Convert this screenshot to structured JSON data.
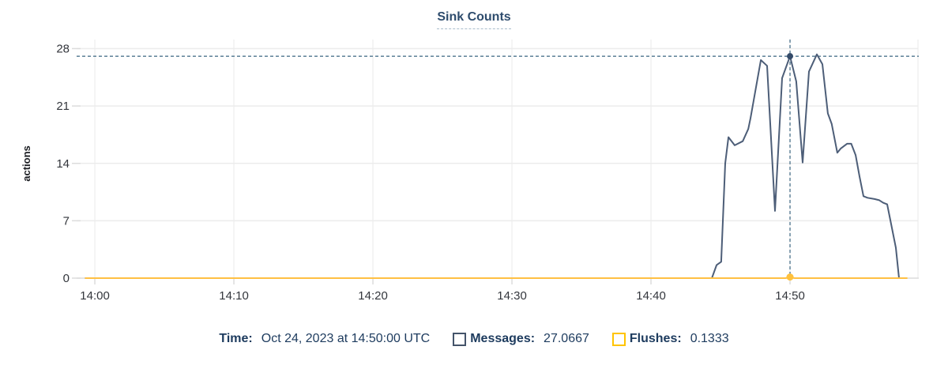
{
  "title": "Sink Counts",
  "tooltip": {
    "time_label": "Time:",
    "time_value": "Oct 24, 2023 at 14:50:00 UTC",
    "items": [
      {
        "label": "Messages:",
        "value": "27.0667",
        "color": "#44546A"
      },
      {
        "label": "Flushes:",
        "value": "0.1333",
        "color": "#FFC400"
      }
    ]
  },
  "chart_data": {
    "type": "line",
    "title": "Sink Counts",
    "xlabel": "",
    "ylabel": "actions",
    "ylim": [
      0,
      28
    ],
    "y_ticks": [
      0,
      7,
      14,
      21,
      28
    ],
    "x_ticks": [
      {
        "minutes": 0,
        "label": "14:00"
      },
      {
        "minutes": 10,
        "label": "14:10"
      },
      {
        "minutes": 20,
        "label": "14:20"
      },
      {
        "minutes": 30,
        "label": "14:30"
      },
      {
        "minutes": 40,
        "label": "14:40"
      },
      {
        "minutes": 50,
        "label": "14:50"
      }
    ],
    "x_range_minutes": [
      -1.31,
      59.26
    ],
    "grid": true,
    "legend_position": "bottom",
    "colors": {
      "messages_line": "#4D5E78",
      "messages_marker": "#344B69",
      "flushes_line": "#FFC043",
      "flushes_marker": "#FFC13D",
      "crosshair": "#4E758E",
      "grid_vertical": "#F1F1F1",
      "grid_horizontal": "#ECECEC",
      "axis_line": "#DCDCDC",
      "tick_text": "#33363C",
      "axis_label_text": "#1A1C21"
    },
    "series": [
      {
        "name": "Messages",
        "points": [
          [
            -0.67,
            0
          ],
          [
            44.38,
            0
          ],
          [
            44.72,
            1.6
          ],
          [
            45.05,
            2.0
          ],
          [
            45.34,
            14.0
          ],
          [
            45.57,
            17.2
          ],
          [
            46.02,
            16.2
          ],
          [
            46.6,
            16.7
          ],
          [
            47.0,
            18.2
          ],
          [
            47.16,
            19.5
          ],
          [
            47.9,
            26.6
          ],
          [
            48.35,
            25.9
          ],
          [
            48.92,
            8.2
          ],
          [
            49.43,
            24.4
          ],
          [
            50.0,
            27.0667
          ],
          [
            50.45,
            24.0
          ],
          [
            50.91,
            14.1
          ],
          [
            51.36,
            25.2
          ],
          [
            51.93,
            27.3
          ],
          [
            52.33,
            26.1
          ],
          [
            52.72,
            20.1
          ],
          [
            53.0,
            18.8
          ],
          [
            53.4,
            15.3
          ],
          [
            53.64,
            15.8
          ],
          [
            54.1,
            16.4
          ],
          [
            54.4,
            16.4
          ],
          [
            54.72,
            15.0
          ],
          [
            55.0,
            12.4
          ],
          [
            55.28,
            10.0
          ],
          [
            55.57,
            9.8
          ],
          [
            56.08,
            9.65
          ],
          [
            56.42,
            9.5
          ],
          [
            56.7,
            9.2
          ],
          [
            56.99,
            9.0
          ],
          [
            57.27,
            6.6
          ],
          [
            57.61,
            3.7
          ],
          [
            57.84,
            0
          ]
        ]
      },
      {
        "name": "Flushes",
        "points": [
          [
            -0.67,
            0
          ],
          [
            49.67,
            0
          ],
          [
            50.0,
            0.1333
          ],
          [
            50.33,
            0
          ],
          [
            58.4,
            0
          ]
        ]
      }
    ],
    "highlight": {
      "t_minutes": 50,
      "time_label": "Oct 24, 2023 at 14:50:00 UTC",
      "messages_value": 27.0667,
      "flushes_value": 0.1333
    }
  }
}
